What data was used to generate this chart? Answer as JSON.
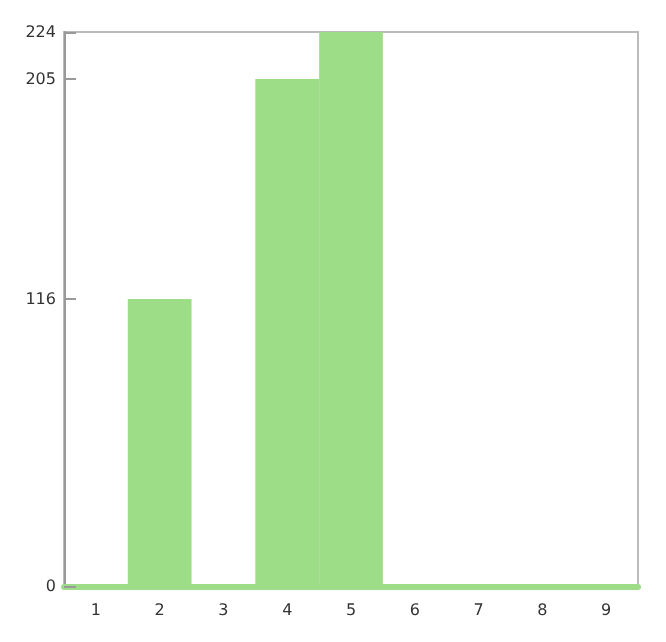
{
  "chart_data": {
    "type": "bar",
    "categories": [
      "1",
      "2",
      "3",
      "4",
      "5",
      "6",
      "7",
      "8",
      "9"
    ],
    "values": [
      0,
      116,
      0,
      205,
      224,
      0,
      0,
      0,
      0
    ],
    "color": "#9edd88",
    "ylim": [
      0,
      224
    ],
    "yticks": [
      0,
      116,
      205,
      224
    ],
    "grid": false
  }
}
